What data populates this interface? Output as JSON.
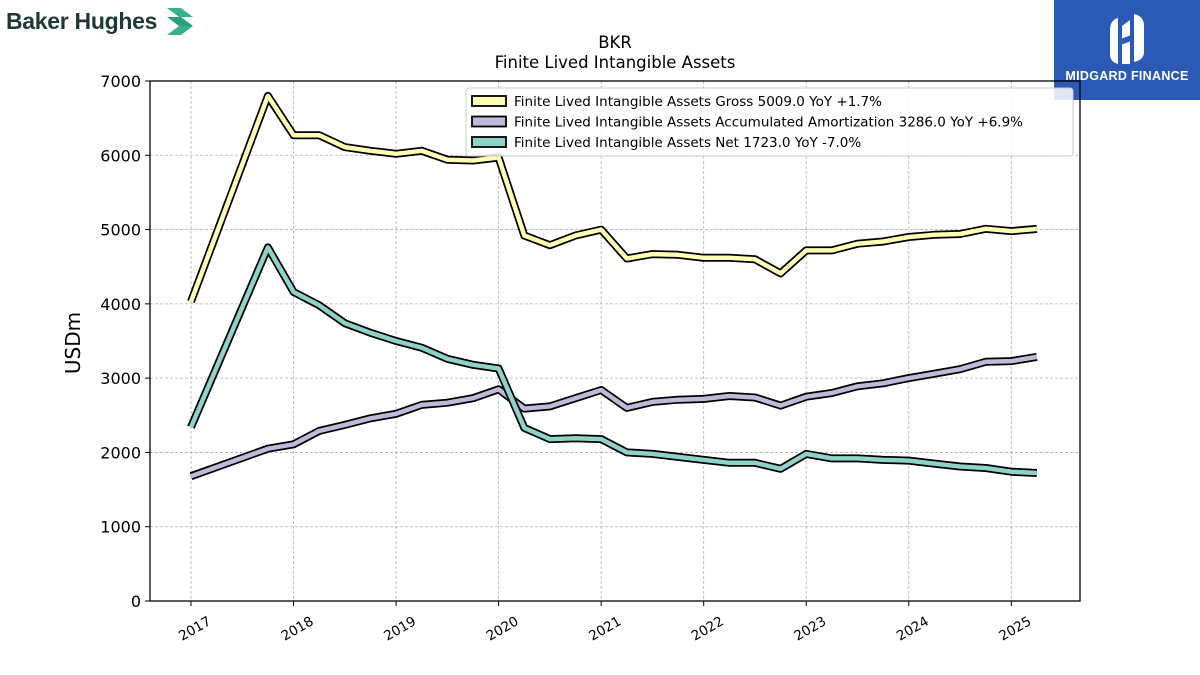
{
  "branding": {
    "left_logo_text": "Baker Hughes",
    "right_logo_text": "MIDGARD FINANCE",
    "left_logo_icon": "baker-hughes-chevron-logo",
    "right_logo_icon": "midgard-finance-logo",
    "right_logo_bg": "#2b59b6",
    "left_logo_accent": "#35b18d"
  },
  "chart_data": {
    "type": "line",
    "title": "BKR",
    "subtitle": "Finite Lived Intangible Assets",
    "xlabel": "",
    "ylabel": "USDm",
    "ylim": [
      0,
      7000
    ],
    "yticks": [
      0,
      1000,
      2000,
      3000,
      4000,
      5000,
      6000,
      7000
    ],
    "xlim": [
      2016.6,
      2025.67
    ],
    "xticks": [
      "2017",
      "2018",
      "2019",
      "2020",
      "2021",
      "2022",
      "2023",
      "2024",
      "2025"
    ],
    "grid": true,
    "legend_position": "top-right",
    "x": [
      2017.0,
      2017.75,
      2018.0,
      2018.25,
      2018.5,
      2018.75,
      2019.0,
      2019.25,
      2019.5,
      2019.75,
      2020.0,
      2020.25,
      2020.5,
      2020.75,
      2021.0,
      2021.25,
      2021.5,
      2021.75,
      2022.0,
      2022.25,
      2022.5,
      2022.75,
      2023.0,
      2023.25,
      2023.5,
      2023.75,
      2024.0,
      2024.25,
      2024.5,
      2024.75,
      2025.0,
      2025.25
    ],
    "series": [
      {
        "name": "Finite Lived Intangible Assets Gross  5009.0 YoY +1.7%",
        "color": "#ffffb3",
        "values": [
          4030,
          6800,
          6270,
          6270,
          6110,
          6060,
          6020,
          6060,
          5940,
          5930,
          5970,
          4920,
          4790,
          4920,
          5000,
          4610,
          4670,
          4660,
          4620,
          4620,
          4600,
          4410,
          4720,
          4720,
          4810,
          4840,
          4900,
          4930,
          4940,
          5010,
          4980,
          5009
        ]
      },
      {
        "name": "Finite Lived Intangible Assets Accumulated Amortization  3286.0 YoY +6.9%",
        "color": "#bebada",
        "values": [
          1680,
          2050,
          2110,
          2290,
          2370,
          2460,
          2520,
          2640,
          2670,
          2730,
          2850,
          2590,
          2620,
          2730,
          2840,
          2600,
          2680,
          2710,
          2720,
          2760,
          2740,
          2630,
          2750,
          2800,
          2890,
          2930,
          3000,
          3060,
          3120,
          3220,
          3230,
          3286
        ]
      },
      {
        "name": "Finite Lived Intangible Assets Net  1723.0 YoY -7.0%",
        "color": "#8dd3c7",
        "values": [
          2340,
          4760,
          4160,
          3980,
          3740,
          3610,
          3500,
          3410,
          3260,
          3180,
          3130,
          2330,
          2180,
          2190,
          2180,
          2000,
          1980,
          1940,
          1900,
          1860,
          1860,
          1780,
          1980,
          1920,
          1920,
          1900,
          1890,
          1850,
          1810,
          1790,
          1740,
          1723
        ]
      }
    ]
  }
}
